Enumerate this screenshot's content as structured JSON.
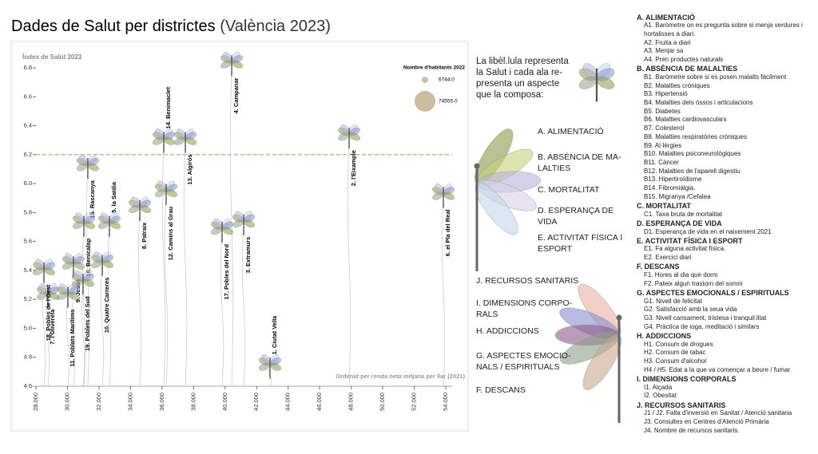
{
  "chart_data": {
    "type": "scatter",
    "title": "Dades de Salut per districtes",
    "title_suffix": "(València 2023)",
    "y_label": "Índex de Salut 2023",
    "x_note": "Ordenat per renda neta mitjana per llar (2021)",
    "labels": [
      "1. Ciutat Vella",
      "2. l'Eixample",
      "3. Extramurs",
      "4. Campanar",
      "5. la Saïdia",
      "6. el Pla del Real",
      "7. l'Olivereta",
      "8. Patraix",
      "9. Jesús",
      "10. Quatre Carreres",
      "11. Poblats Marítims",
      "12. Camins al Grau",
      "13. Algirós",
      "14. Benimaclet",
      "15. Rascanya",
      "16. Benicalap",
      "17. Pobles del Nord",
      "18. Pobles de l'Oest",
      "19. Poblets del Sud"
    ],
    "x": [
      42850,
      47870,
      41180,
      40420,
      32660,
      53850,
      28760,
      34590,
      30380,
      32210,
      30030,
      36260,
      37480,
      36110,
      31290,
      31040,
      39810,
      28510,
      30990
    ],
    "values": [
      4.73,
      6.32,
      5.72,
      6.82,
      5.71,
      5.91,
      5.22,
      5.82,
      5.43,
      5.44,
      5.22,
      5.93,
      6.29,
      6.29,
      6.11,
      5.71,
      5.67,
      5.39,
      5.31
    ],
    "xlim": [
      28000,
      54000
    ],
    "ylim": [
      4.6,
      6.8
    ],
    "xticks": [
      {
        "value": 28000,
        "label": "28.000"
      },
      {
        "value": 30000,
        "label": "30.000"
      },
      {
        "value": 32000,
        "label": "32.000"
      },
      {
        "value": 34000,
        "label": "34.000"
      },
      {
        "value": 36000,
        "label": "36.000"
      },
      {
        "value": 38000,
        "label": "38.000"
      },
      {
        "value": 40000,
        "label": "40.000"
      },
      {
        "value": 42000,
        "label": "42.000"
      },
      {
        "value": 44000,
        "label": "44.000"
      },
      {
        "value": 46000,
        "label": "46.000"
      },
      {
        "value": 48000,
        "label": "48.000"
      },
      {
        "value": 50000,
        "label": "50.000"
      },
      {
        "value": 52000,
        "label": "52.000"
      },
      {
        "value": 54000,
        "label": "54.000"
      }
    ],
    "yticks": [
      4.6,
      4.8,
      {
        "value": 5.0,
        "label": "5.0"
      },
      5.2,
      5.4,
      5.6,
      5.8,
      {
        "value": 6.0,
        "label": "6.0"
      },
      6.2,
      6.4,
      6.6,
      6.8
    ],
    "reference_line": 6.2,
    "reference_color": "#7fbf6a",
    "size_legend": {
      "title": "Nombre d'habitants 2022",
      "items": [
        {
          "value": 6744.0,
          "label": "6744.0"
        },
        {
          "value": 74555.0,
          "label": "74555.0"
        }
      ],
      "color": "#c9bfa0"
    }
  },
  "explanation": [
    "La libèl.lula representa",
    "la Salut i cada ala re-",
    "presenta un aspecte",
    "que la composa:"
  ],
  "wings": [
    {
      "lines": [
        "A. ALIMENTACIÓ"
      ],
      "color": "#8a9a4a"
    },
    {
      "lines": [
        "B. ABSÈNCIA DE MA-",
        "LALTIES"
      ],
      "color": "#c8d07a"
    },
    {
      "lines": [
        "C. MORTALITAT"
      ],
      "color": "#b8b4dc"
    },
    {
      "lines": [
        "D. ESPERANÇA DE",
        "VIDA"
      ],
      "color": "#d8d0e8"
    },
    {
      "lines": [
        "E. ACTIVITAT FÍSICA I",
        "ESPORT"
      ],
      "color": "#c0d8e8"
    },
    {
      "lines": [
        "J. RECURSOS SANITARIS"
      ],
      "color": "#e8b0a0"
    },
    {
      "lines": [
        "I. DIMENSIONS CORPO-",
        "RALS"
      ],
      "color": "#8890d0"
    },
    {
      "lines": [
        "H. ADDICCIONS"
      ],
      "color": "#8a5a8a"
    },
    {
      "lines": [
        "G. ASPECTES EMOCIO-",
        "NALS / ESPIRITUALS"
      ],
      "color": "#90a088"
    },
    {
      "lines": [
        "F. DESCANS"
      ],
      "color": "#c8a890"
    }
  ],
  "index_list": [
    {
      "title": "A. ALIMENTACIÓ",
      "items": [
        "A1. Baròmetre on es pregunta sobre si menja verdures i hortalisses a diari.",
        "A2. Fruita a diari",
        "A3. Menjar sa",
        "A4. Pren productes naturals"
      ]
    },
    {
      "title": "B. ABSÈNCIA DE MALALTIES",
      "items": [
        "B1. Baròmetre sobre si es posen malalts fàcilment",
        "B2. Malalties cròniques",
        "B3. Hipertensió",
        "B4. Malalties dels óssos i articulacions",
        "B5. Diabetes",
        "B6. Malalties cardiovasculars",
        "B7. Colesterol",
        "B8. Malalties respiratòries cròniques",
        "B9. Al·lèrgies",
        "B10. Malalties psiconeurològiques",
        "B11. Càncer",
        "B12. Malalties de l'aparell digestiu",
        "B13. Hipertiroïdisme",
        "B14. Fibromiàlgia.",
        "B15. Migranya /Cefalea"
      ]
    },
    {
      "title": "C. MORTALITAT",
      "items": [
        "C1. Taxa bruta de mortalitat"
      ]
    },
    {
      "title": "D. ESPERANÇA DE VIDA",
      "items": [
        "D1. Esperança de vida en el naixement 2021"
      ]
    },
    {
      "title": "E. ACTIVITAT FÍSICA I ESPORT",
      "items": [
        "E1. Fa alguna activitat física.",
        "E2. Exercici diari"
      ]
    },
    {
      "title": "F. DESCANS",
      "items": [
        "F1. Hores al dia que dorm",
        "F2. Pateix algun trastorn del somni"
      ]
    },
    {
      "title": "G. ASPECTES EMOCIONALS / ESPIRITUALS",
      "items": [
        "G1. Nivell de felicitat",
        "G2. Satisfacció amb la seua vida",
        "G3. Nivell cansament, tristesa i tranquil.litat",
        "G4. Pràctica de ioga, meditació i similars"
      ]
    },
    {
      "title": "H. ADDICCIONS",
      "items": [
        "H1. Consum de drogues",
        "H2. Consum de tabac",
        "H3. Consum d'alcohol",
        "H4 / H5. Edat a la que va començar a beure / fumar"
      ]
    },
    {
      "title": "I. DIMENSIONS CORPORALS",
      "items": [
        "I1. Alçada",
        "I2. Obesitat"
      ]
    },
    {
      "title": "J. RECURSOS SANITARIS",
      "items": [
        "J1 / J2. Falta d'inversió en Sanitat / Atenció sanitaria",
        "J3. Consultes en Centres d'Atenció Primària",
        "J4. Nombre de recursos sanitaris."
      ]
    }
  ]
}
